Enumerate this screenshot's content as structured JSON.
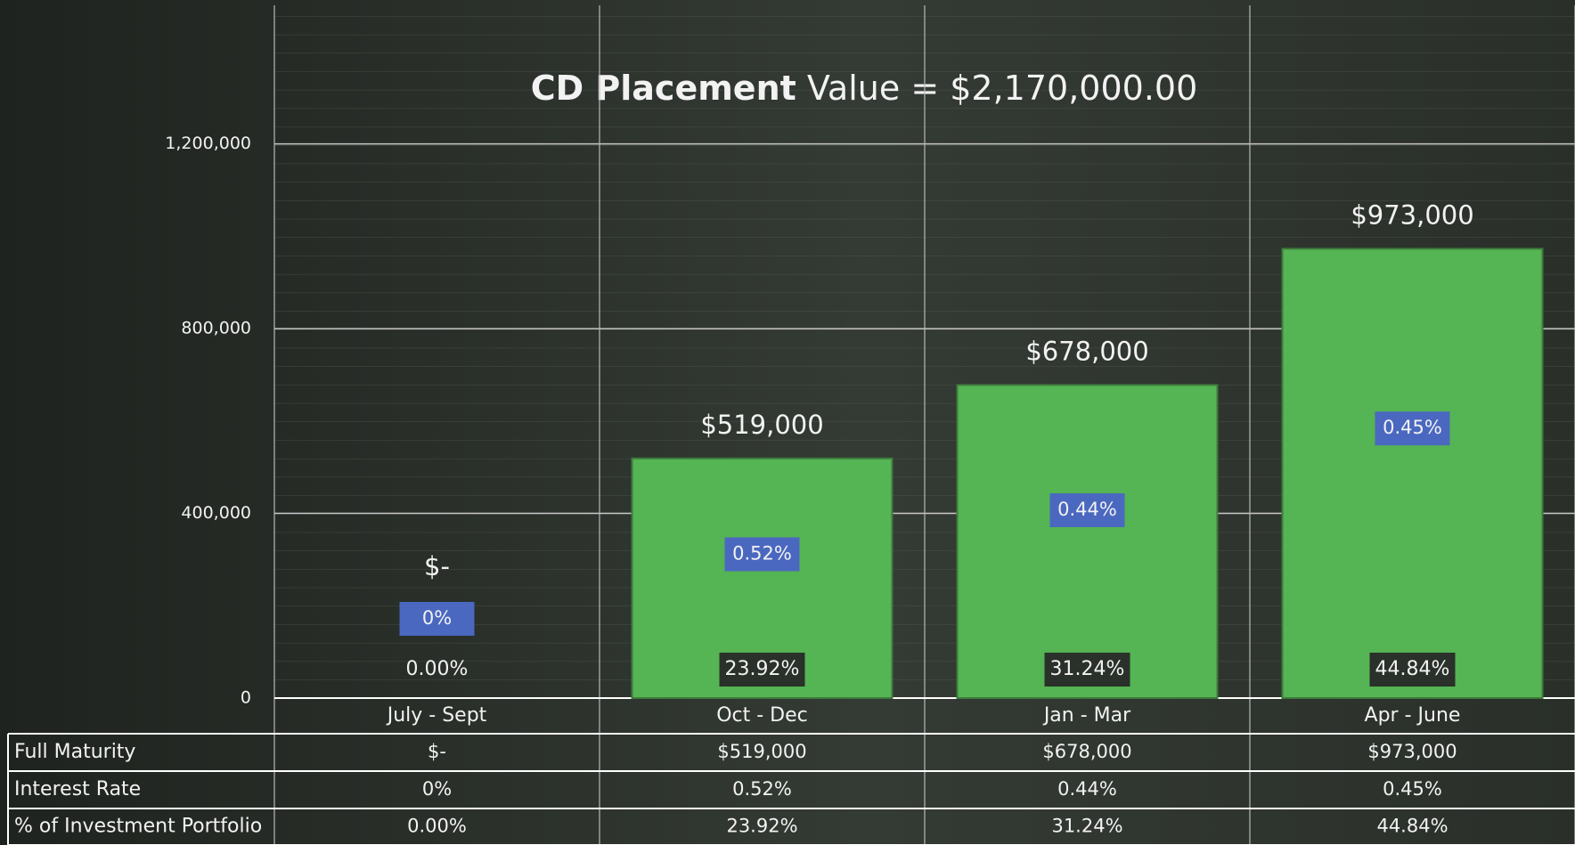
{
  "chart_data": {
    "type": "bar",
    "title": [
      "CD Placement",
      "Value = $2,170,000.00"
    ],
    "categories": [
      "July - Sept",
      "Oct - Dec",
      "Jan - Mar",
      "Apr - June"
    ],
    "series": [
      {
        "name": "Full Maturity",
        "color": "#55b453",
        "values": [
          0,
          519000,
          678000,
          973000
        ],
        "value_labels": [
          "$-",
          "$519,000",
          "$678,000",
          "$973,000"
        ]
      },
      {
        "name": "Interest Rate",
        "color": "#4a68c0",
        "values": [
          0,
          0.52,
          0.44,
          0.45
        ],
        "value_labels": [
          "0%",
          "0.52%",
          "0.44%",
          "0.45%"
        ]
      },
      {
        "name": "% of Investment Portfolio",
        "color": "#2a302a",
        "values": [
          0,
          23.92,
          31.24,
          44.84
        ],
        "value_labels": [
          "0.00%",
          "23.92%",
          "31.24%",
          "44.84%"
        ]
      }
    ],
    "ylim": [
      0,
      1500000
    ],
    "yticks": [
      0,
      {
        "value": 400000,
        "label": "400,000"
      },
      {
        "value": 800000,
        "label": "800,000"
      },
      {
        "value": 1200000,
        "label": "1,200,000"
      }
    ],
    "grid": true
  }
}
